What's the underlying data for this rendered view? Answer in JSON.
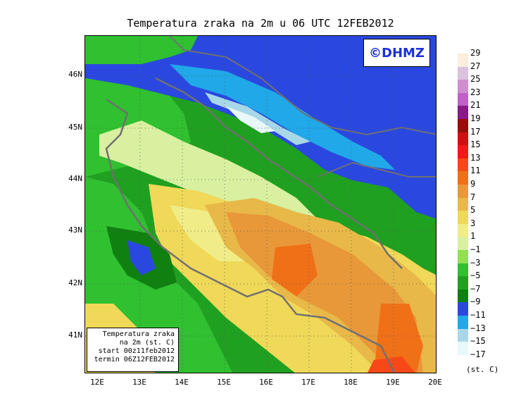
{
  "title": "Temperatura zraka na 2m u 06 UTC 12FEB2012",
  "logo": "©DHMZ",
  "lat_labels": [
    "46N",
    "45N",
    "44N",
    "43N",
    "42N",
    "41N"
  ],
  "lon_labels": [
    "12E",
    "13E",
    "14E",
    "15E",
    "16E",
    "17E",
    "18E",
    "19E",
    "20E"
  ],
  "legend_box": {
    "line1": "Temperatura zraka",
    "line2": "na 2m (st. C)",
    "line3": "start 00z11feb2012",
    "line4": "termin 06Z12FEB2012"
  },
  "colorbar": {
    "labels": [
      "29",
      "27",
      "25",
      "23",
      "21",
      "19",
      "17",
      "15",
      "13",
      "11",
      "9",
      "7",
      "5",
      "3",
      "1",
      "−1",
      "−3",
      "−5",
      "−7",
      "−9",
      "−11",
      "−13",
      "−15",
      "−17"
    ],
    "colors": [
      "#fdeedd",
      "#dcc2dc",
      "#d08ed0",
      "#c060c8",
      "#8a1a8a",
      "#9c0a0a",
      "#d01010",
      "#f01818",
      "#f84818",
      "#f07018",
      "#e89838",
      "#e8b848",
      "#f0d858",
      "#f0ec88",
      "#d8f0a0",
      "#90e050",
      "#30c030",
      "#20a020",
      "#108010",
      "#2a48e0",
      "#20a8e8",
      "#a8d8e8",
      "#e8f8f8"
    ],
    "unit": "(st. C)"
  }
}
